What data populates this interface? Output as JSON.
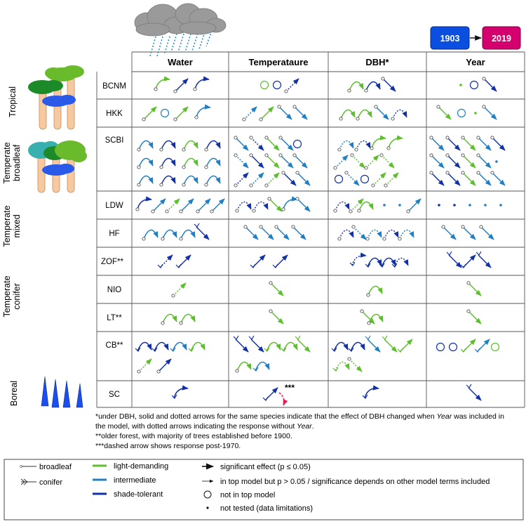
{
  "columns": [
    "Water",
    "Temperataure",
    "DBH*",
    "Year"
  ],
  "years": {
    "start": "1903",
    "end": "2019"
  },
  "groups": [
    {
      "label": "Tropical",
      "sites": [
        "BCNM",
        "HKK"
      ]
    },
    {
      "label": "Temperate broadleaf",
      "sites": [
        "SCBI"
      ]
    },
    {
      "label": "Temperate mixed",
      "sites": [
        "LDW",
        "HF"
      ]
    },
    {
      "label": "Temperate conifer",
      "sites": [
        "ZOF**",
        "NIO",
        "LT**"
      ]
    },
    {
      "label": "Boreal",
      "sites": [
        "CB**",
        "SC"
      ]
    }
  ],
  "sc_note_mark": "***",
  "notes": {
    "n1_pre": "*under DBH, solid and dotted arrows for the same species indicate that the effect of DBH changed when ",
    "n1_italic1": "Year",
    "n1_mid": " was included in",
    "n1_line2_pre": "the model, with dotted arrows indicating the response without ",
    "n1_italic2": "Year",
    "n1_line2_post": ".",
    "n2": "**older forest, with majority of trees established before 1900.",
    "n3": "***dashed arrow shows response post-1970."
  },
  "legend": {
    "broadleaf": "broadleaf",
    "conifer": "conifer",
    "light": "light-demanding",
    "intermediate": "intermediate",
    "shade": "shade-tolerant",
    "sig": "significant effect (p ≤ 0.05)",
    "topmodel": "in top model but p > 0.05 / significance depends on other model terms included",
    "nottop": "not in top model",
    "nottested": "not tested (data limitations)"
  },
  "colors": {
    "light_demanding": "#5bbf2a",
    "intermediate": "#1f7fc4",
    "shade_tolerant": "#1230a8",
    "post1970": "#e0205a",
    "year_start_box": "#0a4fe0",
    "year_end_box": "#d4006e"
  },
  "icons": [
    "rain-cloud-icon",
    "tropical-trees-icon",
    "broadleaf-trees-icon",
    "conifer-trees-icon"
  ]
}
